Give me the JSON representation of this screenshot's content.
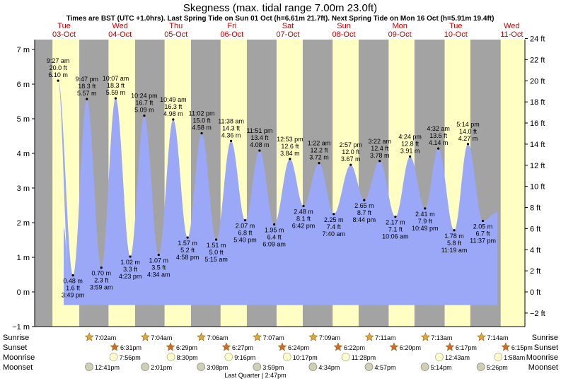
{
  "chart_data": {
    "type": "area",
    "title": "Skegness (max. tidal range 7.00m 23.0ft)",
    "subtitle": "Times are BST (UTC +1.0hrs). Last Spring Tide on Sun 01 Oct (h=6.61m 21.7ft). Next Spring Tide on Mon 16 Oct (h=5.91m 19.4ft)",
    "days": [
      {
        "name": "Tue",
        "date": "03-Oct"
      },
      {
        "name": "Wed",
        "date": "04-Oct"
      },
      {
        "name": "Thu",
        "date": "05-Oct"
      },
      {
        "name": "Fri",
        "date": "06-Oct"
      },
      {
        "name": "Sat",
        "date": "07-Oct"
      },
      {
        "name": "Sun",
        "date": "08-Oct"
      },
      {
        "name": "Mon",
        "date": "09-Oct"
      },
      {
        "name": "Tue",
        "date": "10-Oct"
      },
      {
        "name": "Wed",
        "date": "11-Oct"
      }
    ],
    "y_left": {
      "unit": "m",
      "range": [
        -1,
        7
      ],
      "ticks": [
        "−1 m",
        "0 m",
        "1 m",
        "2 m",
        "3 m",
        "4 m",
        "5 m",
        "6 m",
        "7 m"
      ]
    },
    "y_right": {
      "unit": "ft",
      "range": [
        -3.28,
        22.97
      ],
      "ticks": [
        "−2 ft",
        "0 ft",
        "2 ft",
        "4 ft",
        "6 ft",
        "8 ft",
        "10 ft",
        "12 ft",
        "14 ft",
        "16 ft",
        "18 ft",
        "20 ft",
        "22 ft",
        "24 ft"
      ]
    },
    "tides": [
      {
        "type": "high",
        "day": 0,
        "hour": 9.45,
        "time": "9:27 am",
        "m": 6.1,
        "m_text": "6.10 m",
        "ft_text": "20.0 ft"
      },
      {
        "type": "low",
        "day": 0,
        "hour": 15.82,
        "time": "3:49 pm",
        "m": 0.48,
        "m_text": "0.48 m",
        "ft_text": "1.6 ft"
      },
      {
        "type": "high",
        "day": 0,
        "hour": 21.78,
        "time": "9:47 pm",
        "m": 5.57,
        "m_text": "5.57 m",
        "ft_text": "18.3 ft"
      },
      {
        "type": "low",
        "day": 1,
        "hour": 3.98,
        "time": "3:59 am",
        "m": 0.7,
        "m_text": "0.70 m",
        "ft_text": "2.3 ft"
      },
      {
        "type": "high",
        "day": 1,
        "hour": 10.12,
        "time": "10:07 am",
        "m": 5.59,
        "m_text": "5.59 m",
        "ft_text": "18.3 ft"
      },
      {
        "type": "low",
        "day": 1,
        "hour": 16.38,
        "time": "4:23 pm",
        "m": 1.02,
        "m_text": "1.02 m",
        "ft_text": "3.3 ft"
      },
      {
        "type": "high",
        "day": 1,
        "hour": 22.4,
        "time": "10:24 pm",
        "m": 5.09,
        "m_text": "5.09 m",
        "ft_text": "16.7 ft"
      },
      {
        "type": "low",
        "day": 2,
        "hour": 4.57,
        "time": "4:34 am",
        "m": 1.07,
        "m_text": "1.07 m",
        "ft_text": "3.5 ft"
      },
      {
        "type": "high",
        "day": 2,
        "hour": 10.82,
        "time": "10:49 am",
        "m": 4.98,
        "m_text": "4.98 m",
        "ft_text": "16.3 ft"
      },
      {
        "type": "low",
        "day": 2,
        "hour": 16.97,
        "time": "4:58 pm",
        "m": 1.57,
        "m_text": "1.57 m",
        "ft_text": "5.2 ft"
      },
      {
        "type": "high",
        "day": 2,
        "hour": 23.03,
        "time": "11:02 pm",
        "m": 4.58,
        "m_text": "4.58 m",
        "ft_text": "15.0 ft"
      },
      {
        "type": "low",
        "day": 3,
        "hour": 5.25,
        "time": "5:15 am",
        "m": 1.51,
        "m_text": "1.51 m",
        "ft_text": "5.0 ft"
      },
      {
        "type": "high",
        "day": 3,
        "hour": 11.63,
        "time": "11:38 am",
        "m": 4.36,
        "m_text": "4.36 m",
        "ft_text": "14.3 ft"
      },
      {
        "type": "low",
        "day": 3,
        "hour": 17.67,
        "time": "5:40 pm",
        "m": 2.07,
        "m_text": "2.07 m",
        "ft_text": "6.8 ft"
      },
      {
        "type": "high",
        "day": 3,
        "hour": 23.85,
        "time": "11:51 pm",
        "m": 4.08,
        "m_text": "4.08 m",
        "ft_text": "13.4 ft"
      },
      {
        "type": "low",
        "day": 4,
        "hour": 6.15,
        "time": "6:09 am",
        "m": 1.95,
        "m_text": "1.95 m",
        "ft_text": "6.4 ft"
      },
      {
        "type": "high",
        "day": 4,
        "hour": 12.88,
        "time": "12:53 pm",
        "m": 3.84,
        "m_text": "3.84 m",
        "ft_text": "12.6 ft"
      },
      {
        "type": "low",
        "day": 4,
        "hour": 18.7,
        "time": "6:42 pm",
        "m": 2.48,
        "m_text": "2.48 m",
        "ft_text": "8.1 ft"
      },
      {
        "type": "high",
        "day": 5,
        "hour": 1.37,
        "time": "1:22 am",
        "m": 3.72,
        "m_text": "3.72 m",
        "ft_text": "12.2 ft"
      },
      {
        "type": "low",
        "day": 5,
        "hour": 7.67,
        "time": "7:40 am",
        "m": 2.25,
        "m_text": "2.25 m",
        "ft_text": "7.4 ft"
      },
      {
        "type": "high",
        "day": 5,
        "hour": 14.95,
        "time": "2:57 pm",
        "m": 3.67,
        "m_text": "3.67 m",
        "ft_text": "12.0 ft"
      },
      {
        "type": "low",
        "day": 5,
        "hour": 20.73,
        "time": "8:44 pm",
        "m": 2.65,
        "m_text": "2.65 m",
        "ft_text": "8.7 ft"
      },
      {
        "type": "high",
        "day": 6,
        "hour": 3.37,
        "time": "3:22 am",
        "m": 3.78,
        "m_text": "3.78 m",
        "ft_text": "12.4 ft"
      },
      {
        "type": "low",
        "day": 6,
        "hour": 10.1,
        "time": "10:06 am",
        "m": 2.17,
        "m_text": "2.17 m",
        "ft_text": "7.1 ft"
      },
      {
        "type": "high",
        "day": 6,
        "hour": 16.4,
        "time": "4:24 pm",
        "m": 3.91,
        "m_text": "3.91 m",
        "ft_text": "12.8 ft"
      },
      {
        "type": "low",
        "day": 6,
        "hour": 22.82,
        "time": "10:49 pm",
        "m": 2.41,
        "m_text": "2.41 m",
        "ft_text": "7.9 ft"
      },
      {
        "type": "high",
        "day": 7,
        "hour": 4.53,
        "time": "4:32 am",
        "m": 4.14,
        "m_text": "4.14 m",
        "ft_text": "13.6 ft"
      },
      {
        "type": "low",
        "day": 7,
        "hour": 11.32,
        "time": "11:19 am",
        "m": 1.78,
        "m_text": "1.78 m",
        "ft_text": "5.8 ft"
      },
      {
        "type": "high",
        "day": 7,
        "hour": 17.23,
        "time": "5:14 pm",
        "m": 4.27,
        "m_text": "4.27 m",
        "ft_text": "14.0 ft"
      },
      {
        "type": "low",
        "day": 7,
        "hour": 23.62,
        "time": "11:37 pm",
        "m": 2.05,
        "m_text": "2.05 m",
        "ft_text": "6.7 ft"
      }
    ],
    "sunrise": [
      "7:02am",
      "7:04am",
      "7:06am",
      "7:07am",
      "7:09am",
      "7:11am",
      "7:13am",
      "7:14am"
    ],
    "sunset": [
      "6:31pm",
      "6:29pm",
      "6:27pm",
      "6:24pm",
      "6:22pm",
      "6:20pm",
      "6:17pm",
      "6:15pm"
    ],
    "moonrise": [
      {
        "day": 0,
        "time": "7:56pm"
      },
      {
        "day": 1,
        "time": "8:30pm"
      },
      {
        "day": 2,
        "time": "9:16pm"
      },
      {
        "day": 3,
        "time": "10:17pm"
      },
      {
        "day": 4,
        "time": "11:28pm"
      },
      {
        "day": 6,
        "time": "12:43am"
      },
      {
        "day": 7,
        "time": "1:58am"
      }
    ],
    "moonset": [
      {
        "day": 0,
        "time": "12:41pm"
      },
      {
        "day": 1,
        "time": "2:01pm"
      },
      {
        "day": 2,
        "time": "3:08pm"
      },
      {
        "day": 3,
        "time": "3:59pm"
      },
      {
        "day": 4,
        "time": "4:34pm"
      },
      {
        "day": 5,
        "time": "4:57pm"
      },
      {
        "day": 6,
        "time": "5:14pm"
      },
      {
        "day": 7,
        "time": "5:26pm"
      }
    ],
    "moon_phase": "Last Quarter | 2:47pm",
    "row_labels": {
      "sunrise": "Sunrise",
      "sunset": "Sunset",
      "moonrise": "Moonrise",
      "moonset": "Moonset"
    },
    "colors": {
      "night": "#a3a3a3",
      "day": "#ffffc4",
      "water": "#9aa8f7",
      "day_label": "#c00000",
      "sun": "#e8a530",
      "sunset": "#d86a20",
      "moonrise": "#fffdd0",
      "moonset": "#cfcfb8"
    }
  }
}
